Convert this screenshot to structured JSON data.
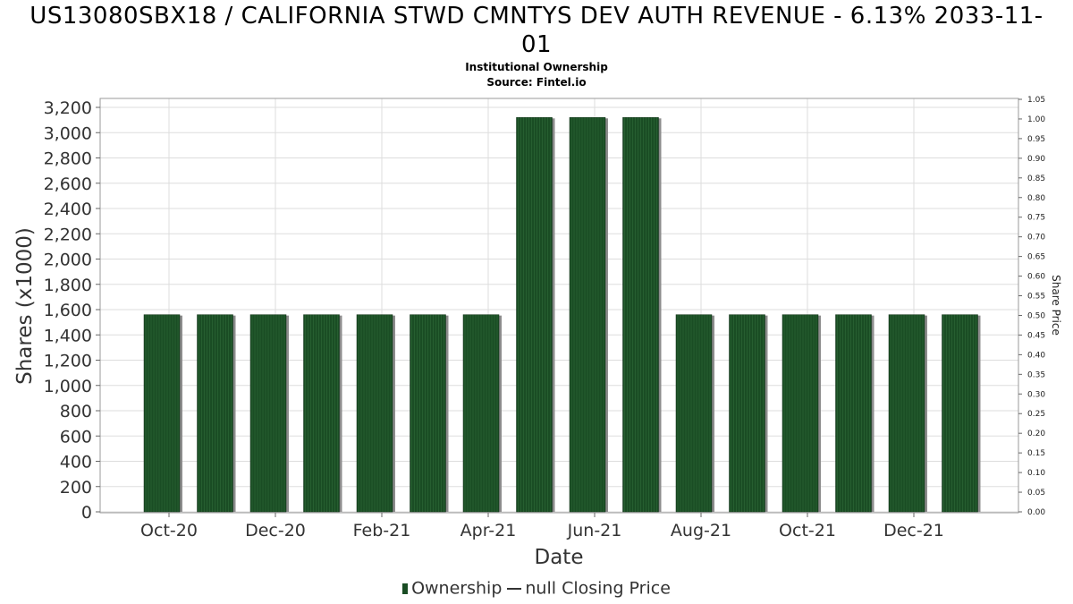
{
  "header": {
    "title": "US13080SBX18 / CALIFORNIA STWD CMNTYS DEV AUTH REVENUE - 6.13% 2033-11-01",
    "subtitle1": "Institutional Ownership",
    "subtitle2": "Source: Fintel.io"
  },
  "legend": {
    "ownership": "Ownership",
    "closing_price": "null Closing Price"
  },
  "colors": {
    "bar": "#1a4d24",
    "bar_shadow": "#8c8c8c",
    "grid": "#dddddd"
  },
  "chart_data": {
    "type": "bar",
    "xlabel": "Date",
    "ylabel": "Shares (x1000)",
    "y2label": "Share Price",
    "ylim": [
      0,
      3250
    ],
    "y2lim": [
      0,
      1.05
    ],
    "yticks": [
      0,
      200,
      400,
      600,
      800,
      1000,
      1200,
      1400,
      1600,
      1800,
      2000,
      2200,
      2400,
      2600,
      2800,
      3000,
      3200
    ],
    "y2ticks": [
      0.0,
      0.05,
      0.1,
      0.15,
      0.2,
      0.25,
      0.3,
      0.35,
      0.4,
      0.45,
      0.5,
      0.55,
      0.6,
      0.65,
      0.7,
      0.75,
      0.8,
      0.85,
      0.9,
      0.95,
      1.0,
      1.05
    ],
    "xtick_labels": [
      "Oct-20",
      "Dec-20",
      "Feb-21",
      "Apr-21",
      "Jun-21",
      "Aug-21",
      "Oct-21",
      "Dec-21"
    ],
    "grid": true,
    "legend_position": "bottom-center",
    "series": [
      {
        "name": "Ownership",
        "categories": [
          "Oct-20",
          "Nov-20",
          "Dec-20",
          "Jan-21",
          "Feb-21",
          "Mar-21",
          "Apr-21",
          "May-21",
          "Jun-21",
          "Jul-21",
          "Aug-21",
          "Sep-21",
          "Oct-21",
          "Nov-21",
          "Dec-21",
          "Jan-22"
        ],
        "values": [
          1560,
          1560,
          1560,
          1560,
          1560,
          1560,
          1560,
          3120,
          3120,
          3120,
          1560,
          1560,
          1560,
          1560,
          1560,
          1560
        ]
      }
    ]
  }
}
